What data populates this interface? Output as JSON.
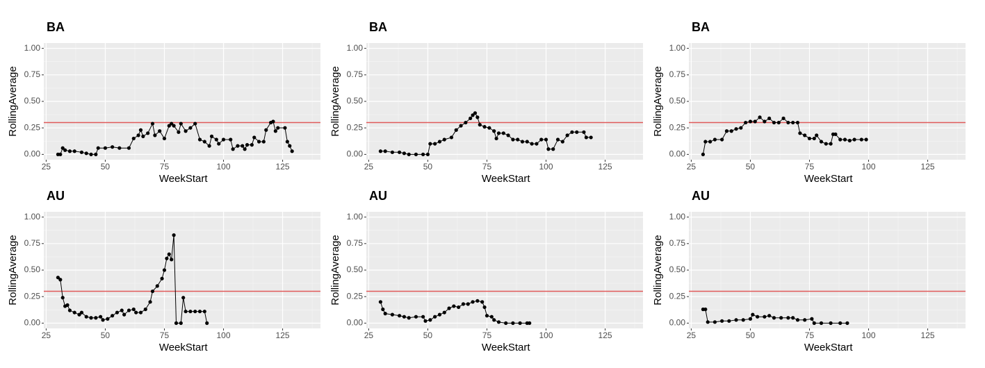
{
  "chart_data": [
    {
      "type": "line",
      "title": "BA",
      "x_label": "WeekStart",
      "y_label": "RollingAverage",
      "color": "#000000",
      "hline": 0.3,
      "hline_color": "#e05a5a",
      "grid": true,
      "x": [
        30,
        31,
        32,
        33,
        35,
        37,
        40,
        42,
        44,
        46,
        47,
        50,
        53,
        56,
        60,
        62,
        64,
        65,
        66,
        68,
        70,
        71,
        73,
        75,
        77,
        78,
        79,
        81,
        82,
        84,
        86,
        88,
        90,
        92,
        94,
        95,
        97,
        98,
        100,
        103,
        104,
        106,
        108,
        109,
        110,
        112,
        113,
        115,
        117,
        118,
        120,
        121,
        122,
        123,
        126,
        127,
        128,
        129
      ],
      "values": [
        0,
        0,
        0.06,
        0.04,
        0.03,
        0.03,
        0.02,
        0.01,
        0,
        0,
        0.06,
        0.06,
        0.07,
        0.06,
        0.06,
        0.15,
        0.18,
        0.23,
        0.17,
        0.2,
        0.29,
        0.18,
        0.22,
        0.15,
        0.27,
        0.29,
        0.27,
        0.21,
        0.29,
        0.22,
        0.25,
        0.29,
        0.14,
        0.12,
        0.08,
        0.17,
        0.14,
        0.1,
        0.14,
        0.14,
        0.05,
        0.08,
        0.08,
        0.05,
        0.09,
        0.09,
        0.16,
        0.12,
        0.12,
        0.23,
        0.3,
        0.31,
        0.22,
        0.25,
        0.25,
        0.12,
        0.08,
        0.03
      ],
      "xlim": [
        24,
        141
      ],
      "xticks": [
        25,
        50,
        75,
        100,
        125
      ],
      "ylim": [
        -0.05,
        1.05
      ],
      "yticks": [
        {
          "value": 0,
          "label": "0.00"
        },
        {
          "value": 0.25,
          "label": "0.25"
        },
        {
          "value": 0.5,
          "label": "0.50"
        },
        {
          "value": 0.75,
          "label": "0.75"
        },
        {
          "value": 1,
          "label": "1.00"
        }
      ]
    },
    {
      "type": "line",
      "title": "BA",
      "x_label": "WeekStart",
      "y_label": "RollingAverage",
      "color": "#000000",
      "hline": 0.3,
      "hline_color": "#e05a5a",
      "grid": true,
      "x": [
        30,
        32,
        35,
        38,
        40,
        42,
        45,
        48,
        50,
        51,
        53,
        55,
        57,
        60,
        62,
        64,
        66,
        68,
        69,
        70,
        71,
        72,
        74,
        76,
        78,
        79,
        80,
        82,
        84,
        86,
        88,
        90,
        92,
        94,
        96,
        98,
        100,
        101,
        103,
        105,
        107,
        109,
        111,
        113,
        116,
        117,
        119
      ],
      "values": [
        0.03,
        0.03,
        0.02,
        0.02,
        0.01,
        0,
        0,
        0,
        0,
        0.1,
        0.1,
        0.12,
        0.14,
        0.16,
        0.23,
        0.27,
        0.3,
        0.34,
        0.37,
        0.39,
        0.35,
        0.28,
        0.26,
        0.25,
        0.22,
        0.15,
        0.2,
        0.2,
        0.18,
        0.14,
        0.14,
        0.12,
        0.12,
        0.1,
        0.1,
        0.14,
        0.14,
        0.05,
        0.05,
        0.14,
        0.12,
        0.18,
        0.21,
        0.21,
        0.21,
        0.16,
        0.16
      ],
      "xlim": [
        24,
        141
      ],
      "xticks": [
        25,
        50,
        75,
        100,
        125
      ],
      "ylim": [
        -0.05,
        1.05
      ],
      "yticks": [
        {
          "value": 0,
          "label": "0.00"
        },
        {
          "value": 0.25,
          "label": "0.25"
        },
        {
          "value": 0.5,
          "label": "0.50"
        },
        {
          "value": 0.75,
          "label": "0.75"
        },
        {
          "value": 1,
          "label": "1.00"
        }
      ]
    },
    {
      "type": "line",
      "title": "BA",
      "x_label": "WeekStart",
      "y_label": "RollingAverage",
      "color": "#000000",
      "hline": 0.3,
      "hline_color": "#e05a5a",
      "grid": true,
      "x": [
        30,
        31,
        33,
        35,
        38,
        40,
        42,
        44,
        46,
        48,
        50,
        52,
        54,
        56,
        58,
        60,
        62,
        64,
        66,
        68,
        70,
        71,
        73,
        75,
        77,
        78,
        80,
        82,
        84,
        85,
        86,
        88,
        90,
        92,
        94,
        97,
        99
      ],
      "values": [
        0,
        0.12,
        0.12,
        0.14,
        0.14,
        0.22,
        0.22,
        0.24,
        0.25,
        0.3,
        0.31,
        0.31,
        0.35,
        0.31,
        0.34,
        0.3,
        0.3,
        0.34,
        0.3,
        0.3,
        0.3,
        0.2,
        0.18,
        0.15,
        0.15,
        0.18,
        0.12,
        0.1,
        0.1,
        0.19,
        0.19,
        0.14,
        0.14,
        0.13,
        0.14,
        0.14,
        0.14
      ],
      "xlim": [
        24,
        141
      ],
      "xticks": [
        25,
        50,
        75,
        100,
        125
      ],
      "ylim": [
        -0.05,
        1.05
      ],
      "yticks": [
        {
          "value": 0,
          "label": "0.00"
        },
        {
          "value": 0.25,
          "label": "0.25"
        },
        {
          "value": 0.5,
          "label": "0.50"
        },
        {
          "value": 0.75,
          "label": "0.75"
        },
        {
          "value": 1,
          "label": "1.00"
        }
      ]
    },
    {
      "type": "line",
      "title": "AU",
      "x_label": "WeekStart",
      "y_label": "RollingAverage",
      "color": "#000000",
      "hline": 0.3,
      "hline_color": "#e05a5a",
      "grid": true,
      "x": [
        30,
        31,
        32,
        33,
        34,
        35,
        37,
        39,
        40,
        42,
        44,
        46,
        48,
        49,
        51,
        53,
        55,
        57,
        58,
        60,
        62,
        63,
        65,
        67,
        69,
        70,
        72,
        74,
        75,
        76,
        77,
        78,
        79,
        80,
        82,
        83,
        84,
        86,
        88,
        90,
        92,
        93
      ],
      "values": [
        0.43,
        0.41,
        0.24,
        0.16,
        0.17,
        0.12,
        0.1,
        0.08,
        0.1,
        0.06,
        0.05,
        0.05,
        0.06,
        0.03,
        0.04,
        0.07,
        0.1,
        0.12,
        0.08,
        0.12,
        0.13,
        0.1,
        0.1,
        0.13,
        0.2,
        0.3,
        0.35,
        0.42,
        0.5,
        0.61,
        0.65,
        0.6,
        0.83,
        0,
        0,
        0.24,
        0.11,
        0.11,
        0.11,
        0.11,
        0.11,
        0
      ],
      "xlim": [
        24,
        141
      ],
      "xticks": [
        25,
        50,
        75,
        100,
        125
      ],
      "ylim": [
        -0.05,
        1.05
      ],
      "yticks": [
        {
          "value": 0,
          "label": "0.00"
        },
        {
          "value": 0.25,
          "label": "0.25"
        },
        {
          "value": 0.5,
          "label": "0.50"
        },
        {
          "value": 0.75,
          "label": "0.75"
        },
        {
          "value": 1,
          "label": "1.00"
        }
      ]
    },
    {
      "type": "line",
      "title": "AU",
      "x_label": "WeekStart",
      "y_label": "RollingAverage",
      "color": "#000000",
      "hline": 0.3,
      "hline_color": "#e05a5a",
      "grid": true,
      "x": [
        30,
        31,
        32,
        35,
        38,
        40,
        42,
        45,
        48,
        49,
        51,
        53,
        55,
        57,
        59,
        61,
        63,
        65,
        67,
        69,
        71,
        73,
        74,
        75,
        77,
        78,
        80,
        83,
        86,
        89,
        92,
        93
      ],
      "values": [
        0.2,
        0.13,
        0.09,
        0.08,
        0.07,
        0.06,
        0.05,
        0.06,
        0.06,
        0.02,
        0.03,
        0.06,
        0.08,
        0.1,
        0.14,
        0.16,
        0.15,
        0.18,
        0.18,
        0.2,
        0.21,
        0.2,
        0.15,
        0.07,
        0.06,
        0.03,
        0.01,
        0,
        0,
        0,
        0,
        0
      ],
      "xlim": [
        24,
        141
      ],
      "xticks": [
        25,
        50,
        75,
        100,
        125
      ],
      "ylim": [
        -0.05,
        1.05
      ],
      "yticks": [
        {
          "value": 0,
          "label": "0.00"
        },
        {
          "value": 0.25,
          "label": "0.25"
        },
        {
          "value": 0.5,
          "label": "0.50"
        },
        {
          "value": 0.75,
          "label": "0.75"
        },
        {
          "value": 1,
          "label": "1.00"
        }
      ]
    },
    {
      "type": "line",
      "title": "AU",
      "x_label": "WeekStart",
      "y_label": "RollingAverage",
      "color": "#000000",
      "hline": 0.3,
      "hline_color": "#e05a5a",
      "grid": true,
      "x": [
        30,
        31,
        32,
        35,
        38,
        41,
        44,
        47,
        50,
        51,
        53,
        56,
        58,
        60,
        63,
        66,
        68,
        70,
        73,
        76,
        77,
        80,
        84,
        88,
        91
      ],
      "values": [
        0.13,
        0.13,
        0.01,
        0.01,
        0.02,
        0.02,
        0.03,
        0.03,
        0.04,
        0.08,
        0.06,
        0.06,
        0.07,
        0.05,
        0.05,
        0.05,
        0.05,
        0.03,
        0.03,
        0.04,
        0,
        0,
        0,
        0,
        0
      ],
      "xlim": [
        24,
        141
      ],
      "xticks": [
        25,
        50,
        75,
        100,
        125
      ],
      "ylim": [
        -0.05,
        1.05
      ],
      "yticks": [
        {
          "value": 0,
          "label": "0.00"
        },
        {
          "value": 0.25,
          "label": "0.25"
        },
        {
          "value": 0.5,
          "label": "0.50"
        },
        {
          "value": 0.75,
          "label": "0.75"
        },
        {
          "value": 1,
          "label": "1.00"
        }
      ]
    }
  ]
}
